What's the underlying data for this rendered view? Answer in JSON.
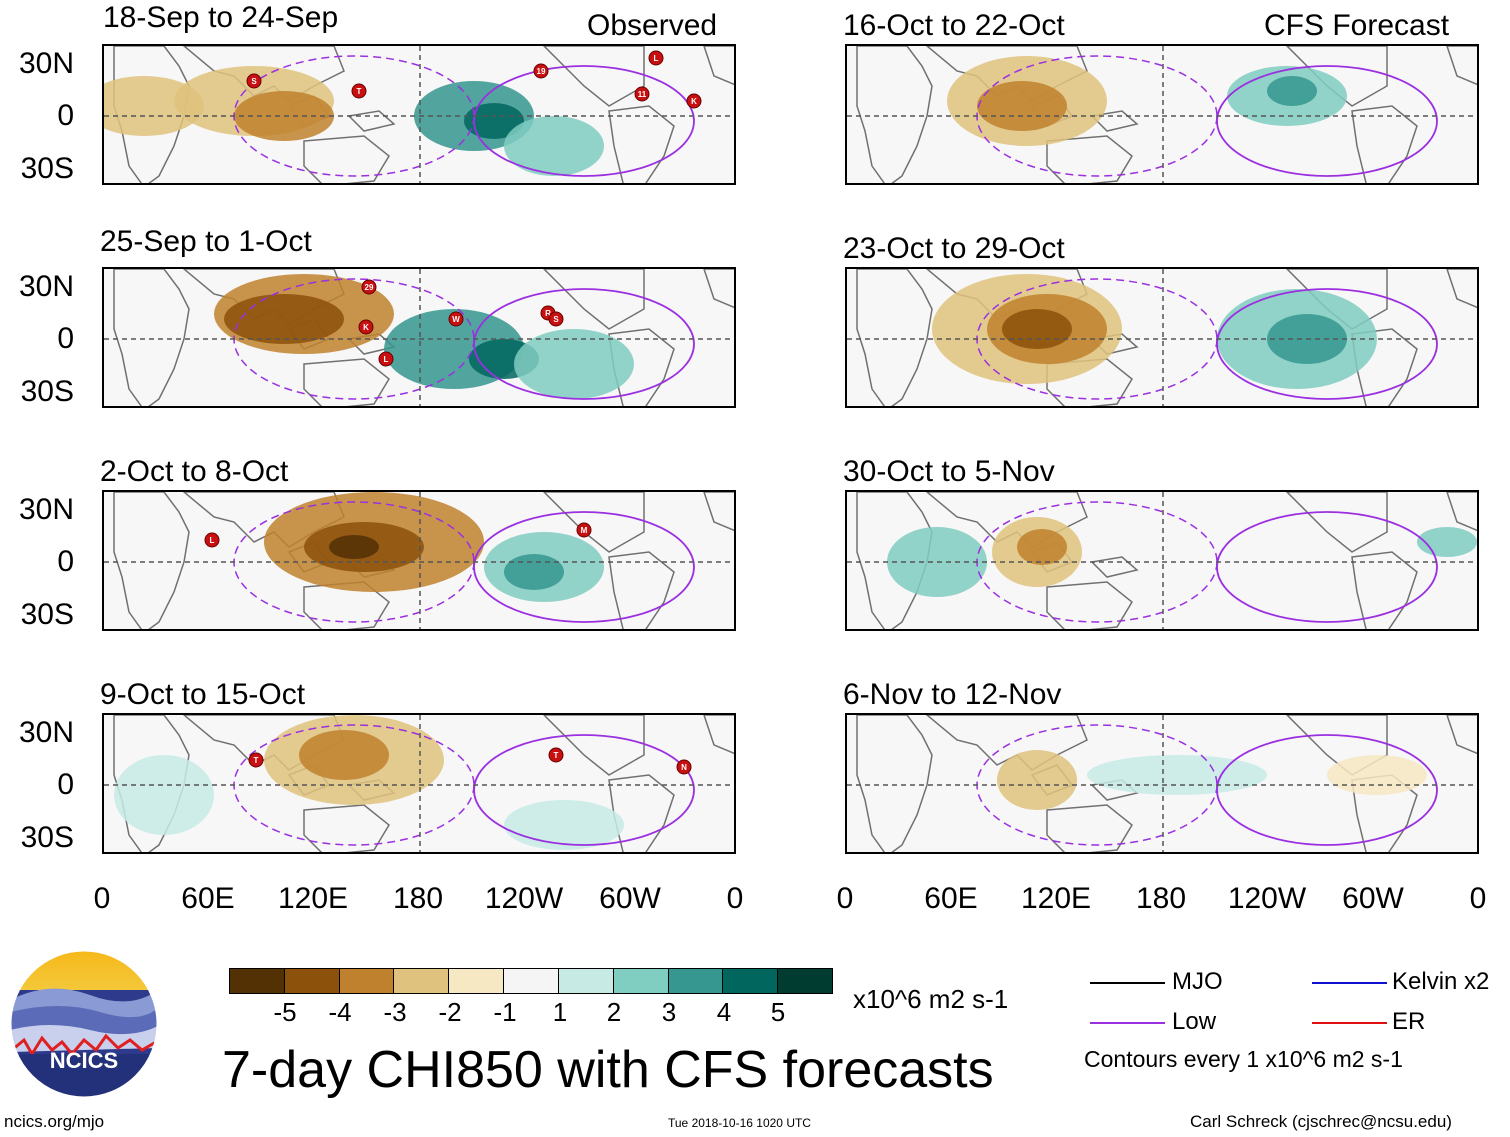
{
  "header": {
    "observed_label": "Observed",
    "forecast_label": "CFS Forecast"
  },
  "panels_left": [
    {
      "title": "18-Sep to 24-Sep"
    },
    {
      "title": "25-Sep to 1-Oct"
    },
    {
      "title": "2-Oct to 8-Oct"
    },
    {
      "title": "9-Oct to 15-Oct"
    }
  ],
  "panels_right": [
    {
      "title": "16-Oct to 22-Oct"
    },
    {
      "title": "23-Oct to 29-Oct"
    },
    {
      "title": "30-Oct to 5-Nov"
    },
    {
      "title": "6-Nov to 12-Nov"
    }
  ],
  "lat_labels": [
    "30N",
    "0",
    "30S"
  ],
  "lon_labels": [
    "0",
    "60E",
    "120E",
    "180",
    "120W",
    "60W",
    "0"
  ],
  "colorbar": {
    "colors": [
      "#543005",
      "#8c510a",
      "#bf812d",
      "#dfc27d",
      "#f6e8c3",
      "#f5f5f5",
      "#c7eae5",
      "#80cdc1",
      "#35978f",
      "#01665e",
      "#003c30"
    ],
    "ticks": [
      "-5",
      "-4",
      "-3",
      "-2",
      "-1",
      "1",
      "2",
      "3",
      "4",
      "5"
    ],
    "units": "x10^6 m2 s-1"
  },
  "legend": {
    "mjo": "MJO",
    "low": "Low",
    "kelvin": "Kelvin x2",
    "er": "ER",
    "contours": "Contours every 1 x10^6 m2 s-1",
    "colors": {
      "mjo": "#000000",
      "low": "#9b30e0",
      "kelvin": "#1010d0",
      "er": "#e01010"
    }
  },
  "main_title": "7-day CHI850 with CFS forecasts",
  "logo_text": "NCICS",
  "footer": {
    "url": "ncics.org/mjo",
    "timestamp": "Tue 2018-10-16 1020 UTC",
    "author": "Carl Schreck (cjschrec@ncsu.edu)"
  },
  "storm_markers": {
    "p0": [
      "S",
      "T",
      "19",
      "L",
      "11",
      "K"
    ],
    "p1": [
      "29",
      "K",
      "L",
      "W",
      "R",
      "S"
    ],
    "p2": [
      "L",
      "M"
    ],
    "p3": [
      "T",
      "T",
      "N"
    ]
  }
}
